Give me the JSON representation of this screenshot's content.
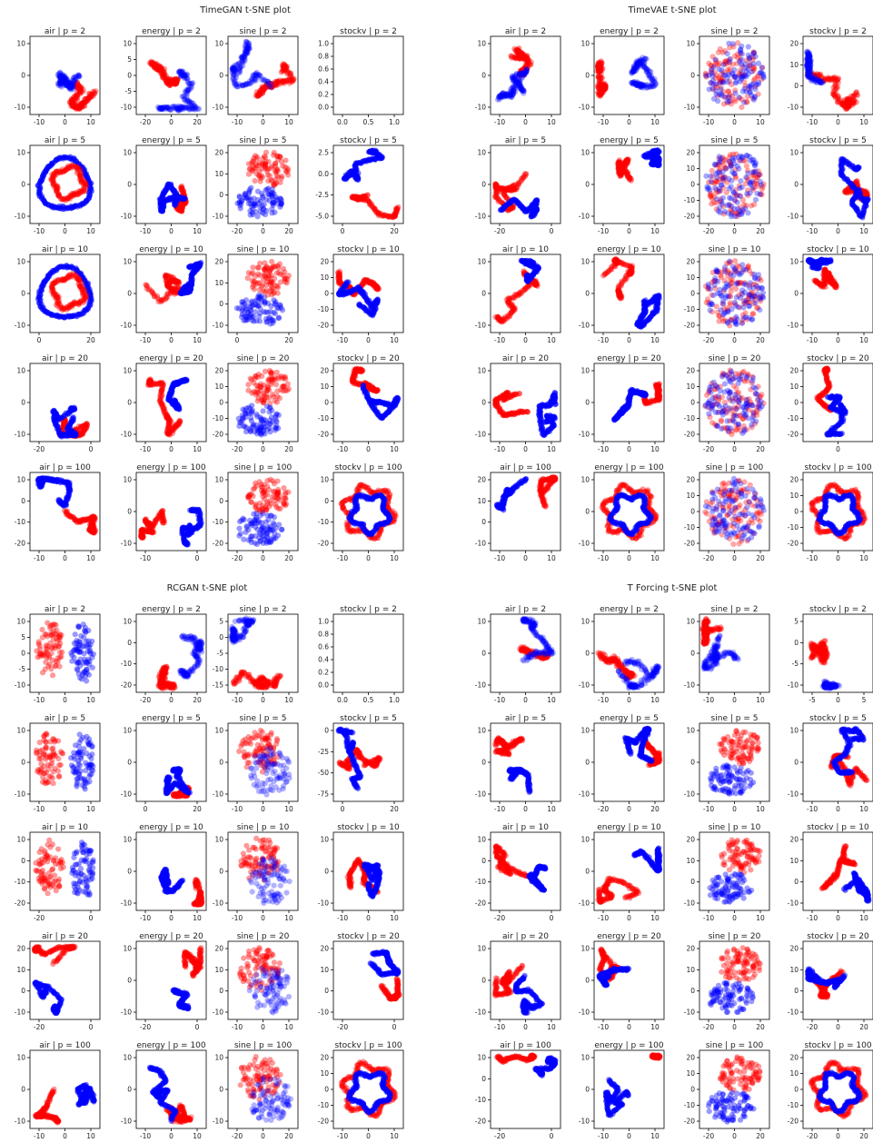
{
  "colors": {
    "real": "#ff0000",
    "synthetic": "#0000ff",
    "frame": "#000000",
    "text": "#222222"
  },
  "chart_data": [
    {
      "type": "scatter",
      "title": "TimeGAN t-SNE plot",
      "rows": [
        "2",
        "5",
        "10",
        "20",
        "100"
      ],
      "datasets": [
        "air",
        "energy",
        "sine",
        "stockv"
      ],
      "panels": [
        [
          "air | p = 2",
          "energy | p = 2",
          "sine | p = 2",
          "stockv | p = 2"
        ],
        [
          "air | p = 5",
          "energy | p = 5",
          "sine | p = 5",
          "stockv | p = 5"
        ],
        [
          "air | p = 10",
          "energy | p = 10",
          "sine | p = 10",
          "stockv | p = 10"
        ],
        [
          "air | p = 20",
          "energy | p = 20",
          "sine | p = 20",
          "stockv | p = 20"
        ],
        [
          "air | p = 100",
          "energy | p = 100",
          "sine | p = 100",
          "stockv | p = 100"
        ]
      ],
      "xticks": [
        [
          [
            "-10",
            "0",
            "10"
          ],
          [
            "-20",
            "0",
            "20"
          ],
          [
            "-10",
            "0",
            "10"
          ],
          [
            "0.0",
            "0.5",
            "1.0"
          ]
        ],
        [
          [
            "-10",
            "0",
            "10"
          ],
          [
            "-10",
            "0",
            "10"
          ],
          [
            "-20",
            "0",
            "20"
          ],
          [
            "0",
            "20"
          ]
        ],
        [
          [
            "0",
            "20"
          ],
          [
            "-10",
            "0",
            "10"
          ],
          [
            "0",
            "20"
          ],
          [
            "-10",
            "0",
            "10"
          ]
        ],
        [
          [
            "-20",
            "0"
          ],
          [
            "-10",
            "0",
            "10"
          ],
          [
            "-20",
            "0",
            "20"
          ],
          [
            "-10",
            "0",
            "10"
          ]
        ],
        [
          [
            "-10",
            "0",
            "10"
          ],
          [
            "-10",
            "0"
          ],
          [
            "-20",
            "0",
            "20"
          ],
          [
            "-10",
            "0",
            "10"
          ]
        ]
      ],
      "yticks": [
        [
          [
            "10",
            "0",
            "-10"
          ],
          [
            "10",
            "5",
            "0",
            "-5",
            "-10"
          ],
          [
            "10",
            "0",
            "-10"
          ],
          [
            "1.0",
            "0.8",
            "0.6",
            "0.4",
            "0.2",
            "0.0"
          ]
        ],
        [
          [
            "10",
            "0",
            "-10"
          ],
          [
            "10",
            "0",
            "-10"
          ],
          [
            "20",
            "10",
            "0",
            "-10"
          ],
          [
            "2.5",
            "0.0",
            "-2.5",
            "-5.0"
          ]
        ],
        [
          [
            "10",
            "0",
            "-10"
          ],
          [
            "10",
            "0",
            "-10"
          ],
          [
            "20",
            "10",
            "0",
            "-10"
          ],
          [
            "20",
            "10",
            "0",
            "-10",
            "-20"
          ]
        ],
        [
          [
            "10",
            "0",
            "-10"
          ],
          [
            "10",
            "0",
            "-10"
          ],
          [
            "20",
            "10",
            "0",
            "-10",
            "-20"
          ],
          [
            "20",
            "10",
            "0",
            "-10",
            "-20"
          ]
        ],
        [
          [
            "10",
            "0",
            "-10",
            "-20"
          ],
          [
            "10",
            "0",
            "-10"
          ],
          [
            "10",
            "0",
            "-10",
            "-20"
          ],
          [
            "10",
            "0",
            "-10",
            "-20"
          ]
        ]
      ],
      "empty_panels": [
        "stockv | p = 2"
      ]
    },
    {
      "type": "scatter",
      "title": "TimeVAE t-SNE plot",
      "rows": [
        "2",
        "5",
        "10",
        "20",
        "100"
      ],
      "datasets": [
        "air",
        "energy",
        "sine",
        "stockv"
      ],
      "panels": [
        [
          "air | p = 2",
          "energy | p = 2",
          "sine | p = 2",
          "stockv | p = 2"
        ],
        [
          "air | p = 5",
          "energy | p = 5",
          "sine | p = 5",
          "stockv | p = 5"
        ],
        [
          "air | p = 10",
          "energy | p = 10",
          "sine | p = 10",
          "stockv | p = 10"
        ],
        [
          "air | p = 20",
          "energy | p = 20",
          "sine | p = 20",
          "stockv | p = 20"
        ],
        [
          "air | p = 100",
          "energy | p = 100",
          "sine | p = 100",
          "stockv | p = 100"
        ]
      ],
      "xticks": [
        [
          [
            "-10",
            "0",
            "10"
          ],
          [
            "-10",
            "0",
            "10"
          ],
          [
            "-10",
            "0",
            "10"
          ],
          [
            "-10",
            "0",
            "10"
          ]
        ],
        [
          [
            "-20",
            "0"
          ],
          [
            "-10",
            "0",
            "10"
          ],
          [
            "-20",
            "0",
            "20"
          ],
          [
            "-10",
            "0",
            "10"
          ]
        ],
        [
          [
            "-10",
            "0",
            "10"
          ],
          [
            "-10",
            "0",
            "10"
          ],
          [
            "-20",
            "0",
            "20"
          ],
          [
            "-10",
            "0",
            "10"
          ]
        ],
        [
          [
            "-10",
            "0",
            "10"
          ],
          [
            "-10",
            "0",
            "10"
          ],
          [
            "-20",
            "0",
            "20"
          ],
          [
            "0"
          ]
        ],
        [
          [
            "-10",
            "0",
            "10"
          ],
          [
            "-10",
            "0",
            "10"
          ],
          [
            "-20",
            "0",
            "20"
          ],
          [
            "-10",
            "0",
            "10"
          ]
        ]
      ],
      "yticks": [
        [
          [
            "10",
            "0",
            "-10"
          ],
          [
            "10",
            "0",
            "-10"
          ],
          [
            "10",
            "0",
            "-10"
          ],
          [
            "20",
            "10",
            "0",
            "-10"
          ]
        ],
        [
          [
            "10",
            "0",
            "-10"
          ],
          [
            "10",
            "0",
            "-10"
          ],
          [
            "20",
            "10",
            "0",
            "-10",
            "-20"
          ],
          [
            "10",
            "0",
            "-10"
          ]
        ],
        [
          [
            "10",
            "0",
            "-10"
          ],
          [
            "10",
            "0",
            "-10"
          ],
          [
            "20",
            "10",
            "0",
            "-10",
            "-20"
          ],
          [
            "10",
            "0",
            "-10"
          ]
        ],
        [
          [
            "10",
            "0",
            "-10"
          ],
          [
            "10",
            "0",
            "-10"
          ],
          [
            "20",
            "10",
            "0",
            "-10",
            "-20"
          ],
          [
            "20",
            "10",
            "0",
            "-10",
            "-20"
          ]
        ],
        [
          [
            "20",
            "10",
            "0",
            "-10"
          ],
          [
            "10",
            "0",
            "-10"
          ],
          [
            "20",
            "10",
            "0",
            "-10",
            "-20"
          ],
          [
            "20",
            "10",
            "0",
            "-10",
            "-20"
          ]
        ]
      ],
      "empty_panels": []
    },
    {
      "type": "scatter",
      "title": "RCGAN t-SNE plot",
      "rows": [
        "2",
        "5",
        "10",
        "20",
        "100"
      ],
      "datasets": [
        "air",
        "energy",
        "sine",
        "stockv"
      ],
      "panels": [
        [
          "air | p = 2",
          "energy | p = 2",
          "sine | p = 2",
          "stockv | p = 2"
        ],
        [
          "air | p = 5",
          "energy | p = 5",
          "sine | p = 5",
          "stockv | p = 5"
        ],
        [
          "air | p = 10",
          "energy | p = 10",
          "sine | p = 10",
          "stockv | p = 10"
        ],
        [
          "air | p = 20",
          "energy | p = 20",
          "sine | p = 20",
          "stockv | p = 20"
        ],
        [
          "air | p = 100",
          "energy | p = 100",
          "sine | p = 100",
          "stockv | p = 100"
        ]
      ],
      "xticks": [
        [
          [
            "-10",
            "0",
            "10"
          ],
          [
            "-20",
            "0",
            "20"
          ],
          [
            "-10",
            "0",
            "10"
          ],
          [
            "0.0",
            "0.5",
            "1.0"
          ]
        ],
        [
          [
            "-10",
            "0",
            "10"
          ],
          [
            "0",
            "20"
          ],
          [
            "-10",
            "0",
            "10"
          ],
          [
            "0",
            "20"
          ]
        ],
        [
          [
            "-20",
            "0"
          ],
          [
            "-10",
            "0",
            "10"
          ],
          [
            "-10",
            "0",
            "10"
          ],
          [
            "-10",
            "0",
            "10"
          ]
        ],
        [
          [
            "-20",
            "0"
          ],
          [
            "-20",
            "0"
          ],
          [
            "-10",
            "0",
            "10"
          ],
          [
            "-20",
            "0"
          ]
        ],
        [
          [
            "-10",
            "0",
            "10"
          ],
          [
            "-10",
            "0",
            "10"
          ],
          [
            "-20",
            "0",
            "20"
          ],
          [
            "-10",
            "0",
            "10"
          ]
        ]
      ],
      "yticks": [
        [
          [
            "10",
            "5",
            "0",
            "-5",
            "-10"
          ],
          [
            "10",
            "0",
            "-10",
            "-20"
          ],
          [
            "5",
            "0",
            "-5",
            "-10",
            "-15"
          ],
          [
            "1.0",
            "0.8",
            "0.6",
            "0.4",
            "0.2",
            "0.0"
          ]
        ],
        [
          [
            "10",
            "0",
            "-10"
          ],
          [
            "10",
            "0",
            "-10"
          ],
          [
            "10",
            "0",
            "-10"
          ],
          [
            "0",
            "-25",
            "-50",
            "-75"
          ]
        ],
        [
          [
            "10",
            "0",
            "-10",
            "-20"
          ],
          [
            "10",
            "0",
            "-10"
          ],
          [
            "10",
            "0",
            "-10"
          ],
          [
            "10",
            "0",
            "-10"
          ]
        ],
        [
          [
            "20",
            "10",
            "0",
            "-10"
          ],
          [
            "10",
            "0",
            "-10"
          ],
          [
            "20",
            "10",
            "0",
            "-10"
          ],
          [
            "20",
            "10",
            "0",
            "-10"
          ]
        ],
        [
          [
            "10",
            "0",
            "-10"
          ],
          [
            "10",
            "0",
            "-10"
          ],
          [
            "10",
            "0",
            "-10"
          ],
          [
            "20",
            "10",
            "0",
            "-10",
            "-20"
          ]
        ]
      ],
      "empty_panels": [
        "stockv | p = 2"
      ]
    },
    {
      "type": "scatter",
      "title": "T Forcing t-SNE plot",
      "rows": [
        "2",
        "5",
        "10",
        "20",
        "100"
      ],
      "datasets": [
        "air",
        "energy",
        "sine",
        "stockv"
      ],
      "panels": [
        [
          "air | p = 2",
          "energy | p = 2",
          "sine | p = 2",
          "stockv | p = 2"
        ],
        [
          "air | p = 5",
          "energy | p = 5",
          "sine | p = 5",
          "stockv | p = 5"
        ],
        [
          "air | p = 10",
          "energy | p = 10",
          "sine | p = 10",
          "stockv | p = 10"
        ],
        [
          "air | p = 20",
          "energy | p = 20",
          "sine | p = 20",
          "stockv | p = 20"
        ],
        [
          "air | p = 100",
          "energy | p = 100",
          "sine | p = 100",
          "stockv | p = 100"
        ]
      ],
      "xticks": [
        [
          [
            "-10",
            "0",
            "10"
          ],
          [
            "-10",
            "0",
            "10"
          ],
          [
            "-10",
            "0",
            "10"
          ],
          [
            "-5",
            "0",
            "5"
          ]
        ],
        [
          [
            "-10",
            "0",
            "10"
          ],
          [
            "-20",
            "0",
            "20"
          ],
          [
            "-10",
            "0",
            "10"
          ],
          [
            "-10",
            "0",
            "10"
          ]
        ],
        [
          [
            "-20",
            "0"
          ],
          [
            "-10",
            "0",
            "10"
          ],
          [
            "-10",
            "0",
            "10"
          ],
          [
            "-10",
            "0",
            "10"
          ]
        ],
        [
          [
            "-10",
            "0",
            "10"
          ],
          [
            "-10",
            "0",
            "10"
          ],
          [
            "-20",
            "0",
            "20"
          ],
          [
            "-20",
            "0",
            "20"
          ]
        ],
        [
          [
            "-20",
            "0"
          ],
          [
            "-10",
            "0",
            "10"
          ],
          [
            "-20",
            "0",
            "20"
          ],
          [
            "-20",
            "0",
            "20"
          ]
        ]
      ],
      "yticks": [
        [
          [
            "10",
            "0",
            "-10"
          ],
          [
            "10",
            "0",
            "-10"
          ],
          [
            "10",
            "0",
            "-10"
          ],
          [
            "5",
            "0",
            "-5",
            "-10"
          ]
        ],
        [
          [
            "10",
            "0",
            "-10"
          ],
          [
            "10",
            "0",
            "-10"
          ],
          [
            "10",
            "0",
            "-10"
          ],
          [
            "10",
            "0",
            "-10"
          ]
        ],
        [
          [
            "10",
            "0",
            "-10",
            "-20"
          ],
          [
            "10",
            "0",
            "-10"
          ],
          [
            "20",
            "10",
            "0",
            "-10"
          ],
          [
            "20",
            "10",
            "0",
            "-10"
          ]
        ],
        [
          [
            "10",
            "0",
            "-10"
          ],
          [
            "10",
            "0",
            "-10"
          ],
          [
            "20",
            "10",
            "0",
            "-10"
          ],
          [
            "20",
            "10",
            "0",
            "-10"
          ]
        ],
        [
          [
            "10",
            "0",
            "-10",
            "-20"
          ],
          [
            "10",
            "0",
            "-10"
          ],
          [
            "20",
            "10",
            "0",
            "-10",
            "-20"
          ],
          [
            "20",
            "10",
            "0",
            "-10",
            "-20"
          ]
        ]
      ],
      "empty_panels": []
    }
  ]
}
